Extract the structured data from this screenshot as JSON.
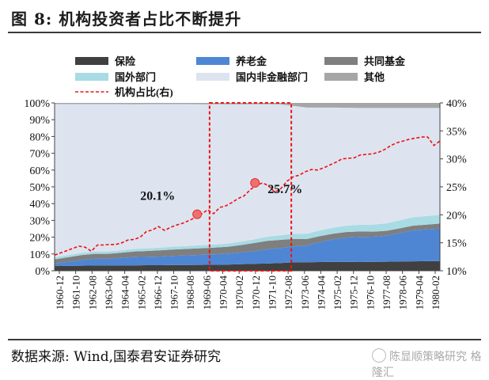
{
  "header": {
    "title": "图 8:  机构投资者占比不断提升"
  },
  "footer": {
    "source": "数据来源:  Wind,国泰君安证券研究",
    "watermark": "陈显顺策略研究 格隆汇"
  },
  "chart_data": {
    "type": "area",
    "stacked": true,
    "x_labels": [
      "1960-12",
      "1961-10",
      "1962-08",
      "1963-06",
      "1964-04",
      "1965-02",
      "1966-12",
      "1967-10",
      "1968-08",
      "1969-06",
      "1970-04",
      "1970-02",
      "1970-12",
      "1971-10",
      "1972-08",
      "1973-06",
      "1974-04",
      "1975-02",
      "1975-12",
      "1976-10",
      "1977-08",
      "1978-06",
      "1979-04",
      "1980-02"
    ],
    "x_note": "ticks evenly spaced across the time axis",
    "ylim_left": [
      0,
      100
    ],
    "yticks_left": [
      "0%",
      "10%",
      "20%",
      "30%",
      "40%",
      "50%",
      "60%",
      "70%",
      "80%",
      "90%",
      "100%"
    ],
    "ylim_right": [
      10,
      40
    ],
    "yticks_right": [
      "10%",
      "15%",
      "20%",
      "25%",
      "30%",
      "35%",
      "40%"
    ],
    "legend_position": "top",
    "series": [
      {
        "name": "保险",
        "color": "#404040",
        "values": [
          2.8,
          2.9,
          3.0,
          3.1,
          3.1,
          3.2,
          3.2,
          3.3,
          3.3,
          3.4,
          3.4,
          3.5,
          3.6,
          3.7,
          3.9,
          4.1,
          4.3,
          4.6,
          5.0,
          5.1,
          5.2,
          5.3,
          5.3,
          5.2,
          5.3,
          5.4,
          5.5,
          5.6,
          5.7,
          5.8
        ]
      },
      {
        "name": "养老金",
        "color": "#4f86d4",
        "values": [
          1.5,
          2.5,
          3.5,
          4.0,
          4.0,
          4.5,
          5.0,
          5.0,
          5.2,
          5.5,
          5.8,
          6.0,
          6.2,
          6.5,
          7.0,
          7.5,
          8.5,
          9.0,
          9.5,
          10.0,
          12.0,
          13.5,
          14.5,
          15.0,
          15.0,
          15.5,
          17.0,
          18.5,
          19.0,
          19.3
        ]
      },
      {
        "name": "共同基金",
        "color": "#7f7f7f",
        "values": [
          2.5,
          2.6,
          2.8,
          3.0,
          3.0,
          3.0,
          3.3,
          3.5,
          3.7,
          3.8,
          3.8,
          3.9,
          4.0,
          4.1,
          4.4,
          4.9,
          5.0,
          4.8,
          4.5,
          3.8,
          3.5,
          3.3,
          3.3,
          3.2,
          3.0,
          2.9,
          2.8,
          2.8,
          2.8,
          3.0
        ]
      },
      {
        "name": "国外部门",
        "color": "#a9dbe4",
        "values": [
          1.2,
          1.3,
          1.3,
          1.4,
          1.4,
          1.4,
          1.5,
          1.6,
          1.6,
          1.7,
          1.7,
          1.8,
          1.8,
          1.9,
          2.0,
          2.2,
          2.5,
          2.8,
          3.0,
          3.2,
          3.4,
          3.6,
          3.8,
          4.0,
          4.2,
          4.5,
          4.8,
          5.0,
          5.1,
          5.2
        ]
      },
      {
        "name": "国内非金融部门",
        "color": "#dde4f0",
        "values": [
          91.3,
          90.0,
          88.7,
          87.8,
          87.8,
          87.2,
          86.2,
          85.9,
          85.5,
          84.9,
          84.6,
          84.0,
          83.6,
          83.0,
          81.8,
          80.5,
          78.9,
          77.9,
          76.2,
          75.1,
          73.1,
          71.5,
          70.2,
          69.6,
          69.5,
          68.7,
          66.9,
          65.1,
          64.4,
          63.7
        ]
      },
      {
        "name": "其他",
        "color": "#a6a6a6",
        "values": [
          0.7,
          0.7,
          0.7,
          0.7,
          0.7,
          0.7,
          0.8,
          0.7,
          0.7,
          0.7,
          0.7,
          0.8,
          0.8,
          0.8,
          0.9,
          0.8,
          0.8,
          0.9,
          1.8,
          2.8,
          2.8,
          2.8,
          2.9,
          3.0,
          3.0,
          3.0,
          3.0,
          3.0,
          3.0,
          3.0
        ]
      },
      {
        "name": "机构占比(右)",
        "color": "#ee1111",
        "axis": "right",
        "style": "dashed",
        "values": [
          12.8,
          13.2,
          13.6,
          14.0,
          14.4,
          14.2,
          13.5,
          14.6,
          14.6,
          14.7,
          14.7,
          15.0,
          15.5,
          15.6,
          16.0,
          17.0,
          17.3,
          17.9,
          17.2,
          17.8,
          18.2,
          18.5,
          19.0,
          19.5,
          20.1,
          20.9,
          20.2,
          21.3,
          21.6,
          22.2,
          22.9,
          23.4,
          24.5,
          25.3,
          25.7,
          25.2,
          24.0,
          24.7,
          26.0,
          26.8,
          27.1,
          27.7,
          28.1,
          28.0,
          28.4,
          28.9,
          29.4,
          30.0,
          30.1,
          30.2,
          30.7,
          30.8,
          30.9,
          31.2,
          31.7,
          32.4,
          32.9,
          33.2,
          33.5,
          33.7,
          33.9,
          33.9,
          32.4,
          33.2
        ]
      }
    ],
    "annotations": [
      {
        "text": "20.1%",
        "index_fraction": 0.37,
        "value": 20.1
      },
      {
        "text": "25.7%",
        "index_fraction": 0.52,
        "value": 25.7
      }
    ],
    "highlight_box": {
      "from_label": "1969-06",
      "to_label": "1972-08",
      "color": "#ee1111"
    }
  }
}
